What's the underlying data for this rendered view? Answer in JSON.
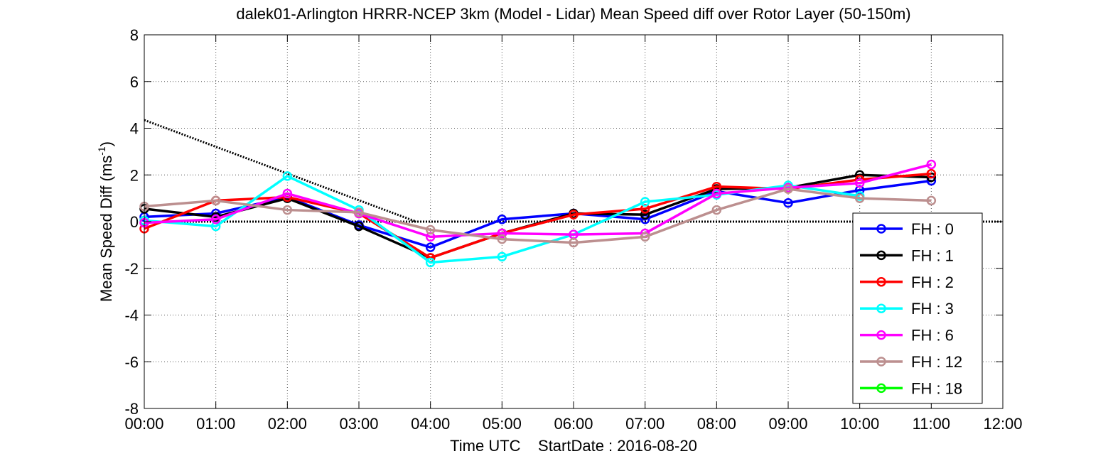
{
  "chart_data": {
    "type": "line",
    "title": "dalek01-Arlington HRRR-NCEP 3km (Model - Lidar) Mean Speed diff over Rotor Layer (50-150m)",
    "xlabel": "Time UTC    StartDate : 2016-08-20",
    "ylabel_main": "Mean Speed Diff (ms",
    "ylabel_sup": "-1",
    "ylabel_close": ")",
    "xlim": [
      0,
      12
    ],
    "ylim": [
      -8,
      8
    ],
    "xticks": [
      0,
      1,
      2,
      3,
      4,
      5,
      6,
      7,
      8,
      9,
      10,
      11,
      12
    ],
    "xtick_labels": [
      "00:00",
      "01:00",
      "02:00",
      "03:00",
      "04:00",
      "05:00",
      "06:00",
      "07:00",
      "08:00",
      "09:00",
      "10:00",
      "11:00",
      "12:00"
    ],
    "yticks": [
      -8,
      -6,
      -4,
      -2,
      0,
      2,
      4,
      6,
      8
    ],
    "ytick_labels": [
      "-8",
      "-6",
      "-4",
      "-2",
      "0",
      "2",
      "4",
      "6",
      "8"
    ],
    "grid": true,
    "legend_position": "bottom-right",
    "series": [
      {
        "name": "FH : 0",
        "color": "#0000ff",
        "x": [
          0,
          1,
          2,
          3,
          4,
          5,
          6,
          7,
          8,
          9,
          10,
          11
        ],
        "y": [
          0.2,
          0.35,
          1.05,
          -0.15,
          -1.1,
          0.1,
          0.35,
          0.1,
          1.3,
          0.8,
          1.35,
          1.75
        ]
      },
      {
        "name": "FH : 1",
        "color": "#000000",
        "x": [
          0,
          1,
          2,
          3,
          4,
          5,
          6,
          7,
          8,
          9,
          10,
          11
        ],
        "y": [
          0.55,
          0.2,
          1.0,
          -0.2,
          -1.55,
          -0.5,
          0.35,
          0.3,
          1.4,
          1.45,
          2.0,
          1.9
        ]
      },
      {
        "name": "FH : 2",
        "color": "#ff0000",
        "x": [
          0,
          1,
          2,
          3,
          4,
          5,
          6,
          7,
          8,
          9,
          10,
          11
        ],
        "y": [
          -0.3,
          0.9,
          1.05,
          0.35,
          -1.55,
          -0.5,
          0.3,
          0.55,
          1.5,
          1.4,
          1.8,
          2.05
        ]
      },
      {
        "name": "FH : 3",
        "color": "#00ffff",
        "x": [
          0,
          1,
          2,
          3,
          4,
          5,
          6,
          7,
          8,
          9,
          10,
          11
        ],
        "y": [
          0.05,
          -0.2,
          1.95,
          0.5,
          -1.75,
          -1.5,
          -0.55,
          0.85,
          1.15,
          1.55,
          1.1,
          null
        ]
      },
      {
        "name": "FH : 6",
        "color": "#ff00ff",
        "x": [
          0,
          1,
          2,
          3,
          4,
          5,
          6,
          7,
          8,
          9,
          10,
          11
        ],
        "y": [
          -0.05,
          0.1,
          1.2,
          0.35,
          -0.65,
          -0.5,
          -0.55,
          -0.5,
          1.2,
          1.45,
          1.65,
          2.45
        ]
      },
      {
        "name": "FH : 12",
        "color": "#bc8f8f",
        "x": [
          0,
          1,
          2,
          3,
          4,
          5,
          6,
          7,
          8,
          9,
          10,
          11
        ],
        "y": [
          0.65,
          0.9,
          0.5,
          0.4,
          -0.35,
          -0.75,
          -0.9,
          -0.65,
          0.5,
          1.4,
          1.0,
          0.9
        ]
      },
      {
        "name": "FH : 18",
        "color": "#00ff00",
        "x": [],
        "y": []
      }
    ],
    "trend_line": {
      "x": [
        0,
        3.8
      ],
      "y": [
        4.35,
        0
      ]
    },
    "zero_line_y": 0
  }
}
